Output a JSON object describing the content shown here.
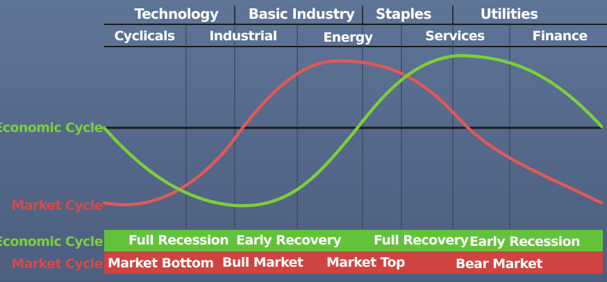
{
  "sectors": {
    "top_row": [
      "Technology",
      "Basic Industry",
      "Staples",
      "Utilities"
    ],
    "bottom_row": [
      "Cyclicals",
      "Industrial",
      "Energy",
      "Services",
      "Finance"
    ]
  },
  "curves": {
    "economic_label": "Economic Cycle",
    "market_label": "Market Cycle",
    "economic_color": "#7ccf3a",
    "market_color": "#e05a56"
  },
  "bands": {
    "economic": {
      "label": "Economic Cycle",
      "color": "#62c23a",
      "phases": [
        "Full Recession",
        "Early Recovery",
        "Full Recovery",
        "Early Recession"
      ]
    },
    "market": {
      "label": "Market Cycle",
      "color": "#d0433f",
      "phases": [
        "Market Bottom",
        "Bull Market",
        "Market Top",
        "Bear Market"
      ]
    }
  }
}
